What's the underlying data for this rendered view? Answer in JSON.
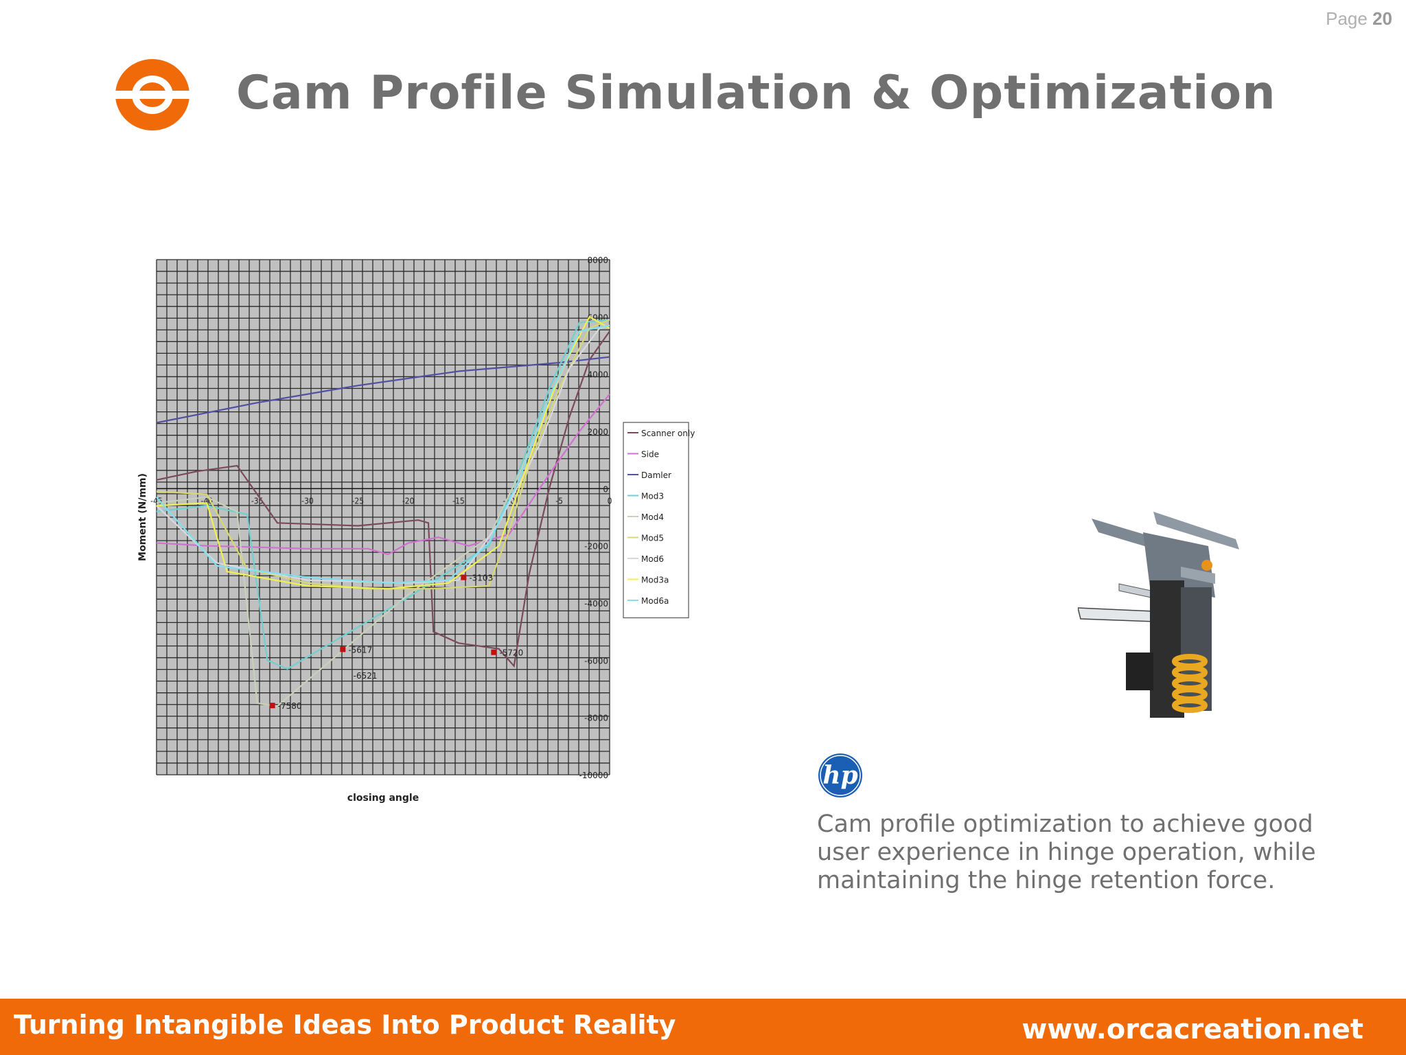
{
  "header": {
    "page_label": "Page",
    "page_number": "20",
    "title": "Cam Profile Simulation & Optimization",
    "logo_icon": "orca-ring-logo-icon"
  },
  "description": "Cam profile optimization to achieve good user experience in hinge operation, while maintaining the hinge retention force.",
  "brand_logo": {
    "text": "hp"
  },
  "footer": {
    "tagline": "Turning Intangible Ideas Into Product Reality",
    "website": "www.orcacreation.net"
  },
  "colors": {
    "accent": "#f06a0a",
    "title": "#707070",
    "chart_bg": "#c0c0c0",
    "hp_blue": "#1a5fb4"
  },
  "chart_data": {
    "type": "line",
    "xlabel": "closing angle",
    "ylabel": "Moment (N/mm)",
    "xlim": [
      -45,
      0
    ],
    "ylim": [
      -10000,
      8000
    ],
    "xticks": [
      -45,
      -40,
      -35,
      -30,
      -25,
      -20,
      -15,
      -10,
      -5,
      0
    ],
    "xtick_labels": [
      "-45",
      "-40",
      "-35",
      "-30",
      "-25",
      "-20",
      "-15",
      "-10",
      "-5",
      "0"
    ],
    "yticks": [
      8000,
      6000,
      4000,
      2000,
      0,
      -2000,
      -4000,
      -6000,
      -8000,
      -10000
    ],
    "ytick_labels": [
      "8000",
      "6000",
      "4000",
      "2000",
      "0",
      "-2000",
      "-4000",
      "-6000",
      "-8000",
      "-10000"
    ],
    "grid": true,
    "legend_position": "right",
    "series": [
      {
        "name": "Scanner only",
        "color": "#7a4a5a",
        "points": [
          [
            -45,
            300
          ],
          [
            -41,
            600
          ],
          [
            -37,
            800
          ],
          [
            -35,
            -200
          ],
          [
            -33,
            -1200
          ],
          [
            -25,
            -1300
          ],
          [
            -19,
            -1100
          ],
          [
            -18,
            -1200
          ],
          [
            -17.5,
            -5000
          ],
          [
            -15,
            -5400
          ],
          [
            -11,
            -5600
          ],
          [
            -9.5,
            -6200
          ],
          [
            -8,
            -3000
          ],
          [
            -6,
            0
          ],
          [
            -4,
            2500
          ],
          [
            -2,
            4500
          ],
          [
            0,
            5500
          ]
        ]
      },
      {
        "name": "Side",
        "color": "#d070d0",
        "points": [
          [
            -45,
            -1900
          ],
          [
            -40,
            -2000
          ],
          [
            -30,
            -2100
          ],
          [
            -24,
            -2100
          ],
          [
            -22,
            -2300
          ],
          [
            -20,
            -1900
          ],
          [
            -17,
            -1700
          ],
          [
            -14,
            -2000
          ],
          [
            -10,
            -1600
          ],
          [
            -6,
            500
          ],
          [
            -3,
            2000
          ],
          [
            0,
            3300
          ]
        ]
      },
      {
        "name": "Damler",
        "color": "#5050a0",
        "points": [
          [
            -45,
            2300
          ],
          [
            -35,
            3000
          ],
          [
            -25,
            3600
          ],
          [
            -15,
            4100
          ],
          [
            -5,
            4400
          ],
          [
            0,
            4600
          ]
        ]
      },
      {
        "name": "Mod3",
        "color": "#70d0d0",
        "points": [
          [
            -45,
            -800
          ],
          [
            -40,
            -600
          ],
          [
            -36,
            -900
          ],
          [
            -34,
            -6000
          ],
          [
            -32,
            -6300
          ],
          [
            -20,
            -3800
          ],
          [
            -12,
            -2000
          ],
          [
            -9,
            600
          ],
          [
            -6,
            3500
          ],
          [
            -3,
            5800
          ],
          [
            0,
            5900
          ]
        ]
      },
      {
        "name": "Mod4",
        "color": "#c8d0b8",
        "points": [
          [
            -45,
            -500
          ],
          [
            -40,
            -300
          ],
          [
            -37,
            -800
          ],
          [
            -35,
            -7500
          ],
          [
            -33,
            -7600
          ],
          [
            -20,
            -3700
          ],
          [
            -12,
            -1700
          ],
          [
            -9,
            500
          ],
          [
            -6,
            3000
          ],
          [
            -3,
            5500
          ],
          [
            0,
            5700
          ]
        ]
      },
      {
        "name": "Mod5",
        "color": "#d8d870",
        "points": [
          [
            -45,
            -100
          ],
          [
            -40,
            -200
          ],
          [
            -36,
            -2800
          ],
          [
            -30,
            -3300
          ],
          [
            -24,
            -3500
          ],
          [
            -18,
            -3500
          ],
          [
            -12,
            -3400
          ],
          [
            -10,
            -1500
          ],
          [
            -8,
            800
          ],
          [
            -5,
            3500
          ],
          [
            -2,
            5600
          ],
          [
            0,
            5900
          ]
        ]
      },
      {
        "name": "Mod6",
        "color": "#d8d8e0",
        "points": [
          [
            -45,
            -600
          ],
          [
            -39,
            -2600
          ],
          [
            -30,
            -3200
          ],
          [
            -20,
            -3300
          ],
          [
            -15,
            -3200
          ],
          [
            -11,
            -1200
          ],
          [
            -7,
            1500
          ],
          [
            -4,
            4200
          ],
          [
            -1,
            5600
          ],
          [
            0,
            5700
          ]
        ]
      },
      {
        "name": "Mod3a",
        "color": "#f0f050",
        "points": [
          [
            -45,
            -600
          ],
          [
            -40,
            -500
          ],
          [
            -38,
            -2900
          ],
          [
            -30,
            -3400
          ],
          [
            -22,
            -3500
          ],
          [
            -16,
            -3300
          ],
          [
            -11,
            -2000
          ],
          [
            -8,
            1000
          ],
          [
            -5,
            4000
          ],
          [
            -2,
            6000
          ],
          [
            0,
            5600
          ]
        ]
      },
      {
        "name": "Mod6a",
        "color": "#80e0f0",
        "points": [
          [
            -45,
            -300
          ],
          [
            -39,
            -2700
          ],
          [
            -30,
            -3100
          ],
          [
            -22,
            -3300
          ],
          [
            -16,
            -3200
          ],
          [
            -12,
            -1900
          ],
          [
            -9,
            300
          ],
          [
            -6,
            3200
          ],
          [
            -3,
            5500
          ],
          [
            0,
            5700
          ]
        ]
      }
    ],
    "annotations": [
      {
        "x": -33.5,
        "y": -7580,
        "label": "-7580",
        "marker": true
      },
      {
        "x": -26.5,
        "y": -5617,
        "label": "-5617",
        "marker": true
      },
      {
        "x": -26,
        "y": -6521,
        "label": "-6521",
        "marker": false
      },
      {
        "x": -14.5,
        "y": -3103,
        "label": "-3103",
        "marker": true
      },
      {
        "x": -11.5,
        "y": -5720,
        "label": "-5720",
        "marker": true
      }
    ]
  }
}
